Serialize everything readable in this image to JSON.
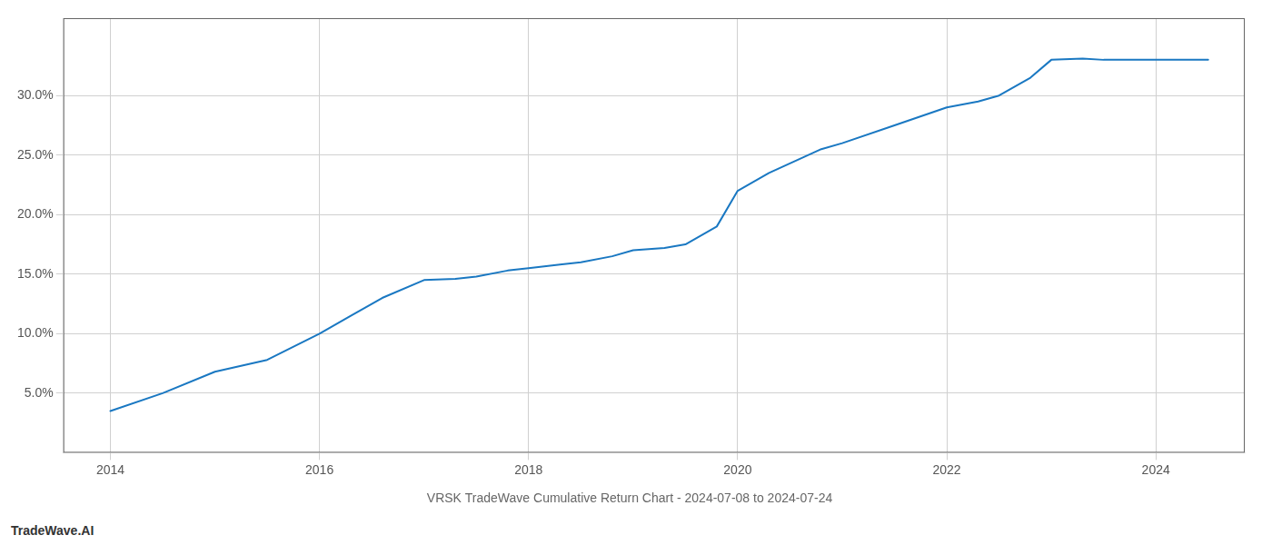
{
  "chart_data": {
    "type": "line",
    "title": "VRSK TradeWave Cumulative Return Chart - 2024-07-08 to 2024-07-24",
    "annotations": [
      "TradeWave.AI"
    ],
    "x": [
      2014.0,
      2014.5,
      2015.0,
      2015.5,
      2016.0,
      2016.3,
      2016.6,
      2017.0,
      2017.3,
      2017.5,
      2017.8,
      2018.0,
      2018.3,
      2018.5,
      2018.8,
      2019.0,
      2019.3,
      2019.5,
      2019.8,
      2020.0,
      2020.3,
      2020.8,
      2021.0,
      2021.5,
      2022.0,
      2022.3,
      2022.5,
      2022.8,
      2023.0,
      2023.3,
      2023.5,
      2023.8,
      2024.0,
      2024.5
    ],
    "values": [
      3.5,
      5.0,
      6.8,
      7.8,
      10.0,
      11.5,
      13.0,
      14.5,
      14.6,
      14.8,
      15.3,
      15.5,
      15.8,
      16.0,
      16.5,
      17.0,
      17.2,
      17.5,
      19.0,
      22.0,
      23.5,
      25.5,
      26.0,
      27.5,
      29.0,
      29.5,
      30.0,
      31.5,
      33.0,
      33.1,
      33.0,
      33.0,
      33.0,
      33.0
    ],
    "color": "#1a78c2",
    "xlim": [
      2013.55,
      2024.85
    ],
    "ylim": [
      0.0,
      36.5
    ],
    "xticks": [
      2014,
      2016,
      2018,
      2020,
      2022,
      2024
    ],
    "yticks": [
      {
        "value": 5.0,
        "label": "5.0%"
      },
      {
        "value": 10.0,
        "label": "10.0%"
      },
      {
        "value": 15.0,
        "label": "15.0%"
      },
      {
        "value": 20.0,
        "label": "20.0%"
      },
      {
        "value": 25.0,
        "label": "25.0%"
      },
      {
        "value": 30.0,
        "label": "30.0%"
      }
    ],
    "grid": true
  }
}
